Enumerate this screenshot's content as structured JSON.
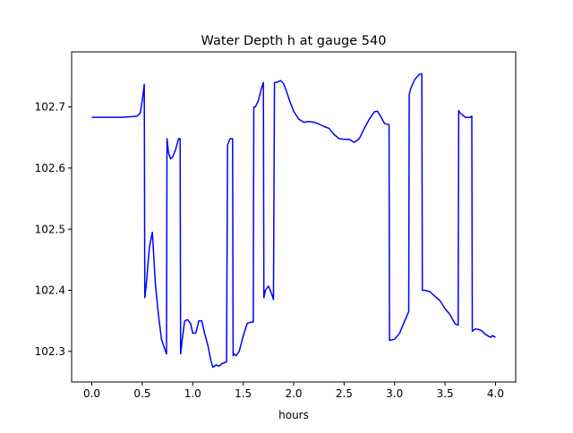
{
  "chart_data": {
    "type": "line",
    "title": "Water Depth h at gauge 540",
    "xlabel": "hours",
    "ylabel": "",
    "xlim": [
      -0.2,
      4.2
    ],
    "ylim": [
      102.25,
      102.79
    ],
    "xticks": [
      0.0,
      0.5,
      1.0,
      1.5,
      2.0,
      2.5,
      3.0,
      3.5,
      4.0
    ],
    "xtick_labels": [
      "0.0",
      "0.5",
      "1.0",
      "1.5",
      "2.0",
      "2.5",
      "3.0",
      "3.5",
      "4.0"
    ],
    "yticks": [
      102.3,
      102.4,
      102.5,
      102.6,
      102.7
    ],
    "ytick_labels": [
      "102.3",
      "102.4",
      "102.5",
      "102.6",
      "102.7"
    ],
    "grid": false,
    "legend": "none",
    "colors": {
      "line": "#0000ff",
      "axes": "#000000",
      "background": "#ffffff"
    },
    "series": [
      {
        "x": [
          0.0,
          0.1,
          0.2,
          0.3,
          0.4,
          0.45,
          0.48,
          0.5,
          0.52,
          0.525,
          0.54,
          0.57,
          0.6,
          0.63,
          0.66,
          0.69,
          0.72,
          0.74,
          0.745,
          0.76,
          0.78,
          0.8,
          0.83,
          0.86,
          0.875,
          0.88,
          0.9,
          0.92,
          0.95,
          0.98,
          1.0,
          1.03,
          1.06,
          1.09,
          1.12,
          1.15,
          1.18,
          1.2,
          1.23,
          1.26,
          1.29,
          1.32,
          1.335,
          1.345,
          1.37,
          1.395,
          1.4,
          1.41,
          1.43,
          1.46,
          1.5,
          1.54,
          1.58,
          1.6,
          1.605,
          1.62,
          1.65,
          1.68,
          1.7,
          1.705,
          1.72,
          1.75,
          1.78,
          1.8,
          1.81,
          1.83,
          1.87,
          1.9,
          1.93,
          1.96,
          2.0,
          2.05,
          2.1,
          2.15,
          2.2,
          2.25,
          2.3,
          2.35,
          2.4,
          2.45,
          2.5,
          2.55,
          2.6,
          2.65,
          2.7,
          2.75,
          2.8,
          2.83,
          2.86,
          2.9,
          2.94,
          2.945,
          2.95,
          3.0,
          3.05,
          3.1,
          3.14,
          3.145,
          3.16,
          3.2,
          3.25,
          3.27,
          3.275,
          3.3,
          3.35,
          3.4,
          3.45,
          3.5,
          3.55,
          3.6,
          3.63,
          3.635,
          3.65,
          3.7,
          3.75,
          3.765,
          3.77,
          3.8,
          3.83,
          3.86,
          3.9,
          3.95,
          3.97,
          4.0
        ],
        "y": [
          102.683,
          102.683,
          102.683,
          102.683,
          102.684,
          102.685,
          102.69,
          102.71,
          102.737,
          102.388,
          102.41,
          102.47,
          102.495,
          102.41,
          102.36,
          102.32,
          102.305,
          102.296,
          102.648,
          102.625,
          102.615,
          102.618,
          102.63,
          102.648,
          102.648,
          102.296,
          102.325,
          102.35,
          102.352,
          102.345,
          102.33,
          102.33,
          102.35,
          102.35,
          102.328,
          102.31,
          102.285,
          102.274,
          102.278,
          102.276,
          102.28,
          102.282,
          102.283,
          102.638,
          102.648,
          102.648,
          102.293,
          102.296,
          102.293,
          102.3,
          102.325,
          102.346,
          102.348,
          102.348,
          102.7,
          102.7,
          102.71,
          102.73,
          102.74,
          102.388,
          102.4,
          102.407,
          102.395,
          102.385,
          102.74,
          102.74,
          102.743,
          102.738,
          102.725,
          102.71,
          102.693,
          102.68,
          102.675,
          102.676,
          102.675,
          102.672,
          102.668,
          102.665,
          102.655,
          102.648,
          102.647,
          102.647,
          102.642,
          102.648,
          102.665,
          102.68,
          102.692,
          102.693,
          102.685,
          102.673,
          102.671,
          102.671,
          102.318,
          102.32,
          102.33,
          102.35,
          102.365,
          102.72,
          102.73,
          102.745,
          102.754,
          102.754,
          102.4,
          102.4,
          102.398,
          102.39,
          102.383,
          102.37,
          102.36,
          102.345,
          102.343,
          102.694,
          102.69,
          102.683,
          102.683,
          102.685,
          102.333,
          102.337,
          102.336,
          102.334,
          102.328,
          102.323,
          102.326,
          102.323
        ]
      }
    ]
  }
}
